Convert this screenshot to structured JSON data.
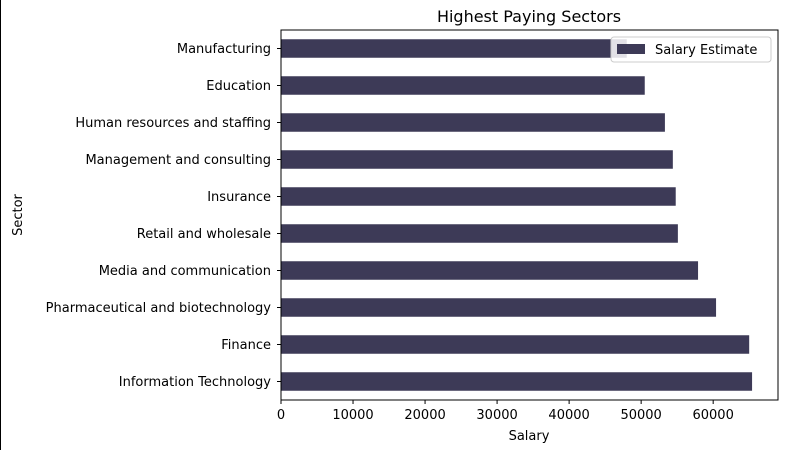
{
  "chart_data": {
    "type": "bar",
    "orientation": "horizontal",
    "title": "Highest Paying Sectors",
    "xlabel": "Salary",
    "ylabel": "Sector",
    "xlim": [
      0,
      69000
    ],
    "x_ticks": [
      0,
      10000,
      20000,
      30000,
      40000,
      50000,
      60000
    ],
    "grid": false,
    "legend_position": "top-right",
    "categories": [
      "Manufacturing",
      "Education",
      "Human resources and staffing",
      "Management and consulting",
      "Insurance",
      "Retail and wholesale",
      "Media and communication",
      "Pharmaceutical and biotechnology",
      "Finance",
      "Information Technology"
    ],
    "series": [
      {
        "name": "Salary Estimate",
        "color": "#3d3a57",
        "values": [
          48000,
          50500,
          53300,
          54400,
          54800,
          55100,
          57900,
          60400,
          65000,
          65400
        ]
      }
    ]
  }
}
